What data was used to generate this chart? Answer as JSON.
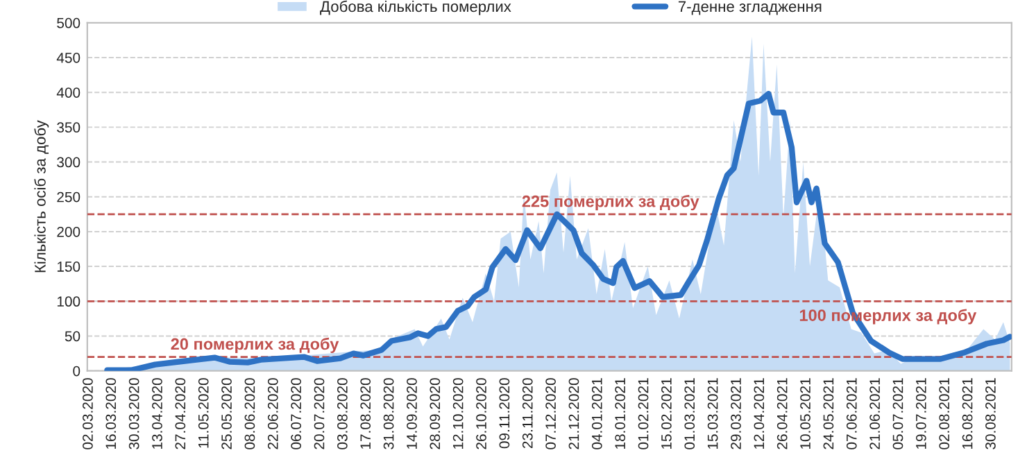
{
  "chart_data": {
    "type": "line",
    "ylabel": "Кількість осіб за добу",
    "xlim": [
      "2020-03-01",
      "2021-09-11"
    ],
    "ylim": [
      0,
      500
    ],
    "yticks": [
      0,
      50,
      100,
      150,
      200,
      250,
      300,
      350,
      400,
      450,
      500
    ],
    "xticks": [
      {
        "value": "2020-03-02",
        "label": "02.03.2020"
      },
      {
        "value": "2020-03-16",
        "label": "16.03.2020"
      },
      {
        "value": "2020-03-30",
        "label": "30.03.2020"
      },
      {
        "value": "2020-04-13",
        "label": "13.04.2020"
      },
      {
        "value": "2020-04-27",
        "label": "27.04.2020"
      },
      {
        "value": "2020-05-11",
        "label": "11.05.2020"
      },
      {
        "value": "2020-05-25",
        "label": "25.05.2020"
      },
      {
        "value": "2020-06-08",
        "label": "08.06.2020"
      },
      {
        "value": "2020-06-22",
        "label": "22.06.2020"
      },
      {
        "value": "2020-07-06",
        "label": "06.07.2020"
      },
      {
        "value": "2020-07-20",
        "label": "20.07.2020"
      },
      {
        "value": "2020-08-03",
        "label": "03.08.2020"
      },
      {
        "value": "2020-08-17",
        "label": "17.08.2020"
      },
      {
        "value": "2020-08-31",
        "label": "31.08.2020"
      },
      {
        "value": "2020-09-14",
        "label": "14.09.2020"
      },
      {
        "value": "2020-09-28",
        "label": "28.09.2020"
      },
      {
        "value": "2020-10-12",
        "label": "12.10.2020"
      },
      {
        "value": "2020-10-26",
        "label": "26.10.2020"
      },
      {
        "value": "2020-11-09",
        "label": "09.11.2020"
      },
      {
        "value": "2020-11-23",
        "label": "23.11.2020"
      },
      {
        "value": "2020-12-07",
        "label": "07.12.2020"
      },
      {
        "value": "2020-12-21",
        "label": "21.12.2020"
      },
      {
        "value": "2021-01-04",
        "label": "04.01.2021"
      },
      {
        "value": "2021-01-18",
        "label": "18.01.2021"
      },
      {
        "value": "2021-02-01",
        "label": "01.02.2021"
      },
      {
        "value": "2021-02-15",
        "label": "15.02.2021"
      },
      {
        "value": "2021-03-01",
        "label": "01.03.2021"
      },
      {
        "value": "2021-03-15",
        "label": "15.03.2021"
      },
      {
        "value": "2021-03-29",
        "label": "29.03.2021"
      },
      {
        "value": "2021-04-12",
        "label": "12.04.2021"
      },
      {
        "value": "2021-04-26",
        "label": "26.04.2021"
      },
      {
        "value": "2021-05-10",
        "label": "10.05.2021"
      },
      {
        "value": "2021-05-24",
        "label": "24.05.2021"
      },
      {
        "value": "2021-06-07",
        "label": "07.06.2021"
      },
      {
        "value": "2021-06-21",
        "label": "21.06.2021"
      },
      {
        "value": "2021-07-05",
        "label": "05.07.2021"
      },
      {
        "value": "2021-07-19",
        "label": "19.07.2021"
      },
      {
        "value": "2021-08-02",
        "label": "02.08.2021"
      },
      {
        "value": "2021-08-16",
        "label": "16.08.2021"
      },
      {
        "value": "2021-08-30",
        "label": "30.08.2021"
      }
    ],
    "grid": "y",
    "legend": "top",
    "series": [
      {
        "name": "Добова кількість померлих",
        "type": "area",
        "color": "#c5dcf5",
        "x": [
          "2020-03-13",
          "2020-04-10",
          "2020-05-10",
          "2020-06-10",
          "2020-07-10",
          "2020-08-10",
          "2020-08-25",
          "2020-09-05",
          "2020-09-15",
          "2020-09-20",
          "2020-10-01",
          "2020-10-06",
          "2020-10-14",
          "2020-10-20",
          "2020-10-28",
          "2020-11-02",
          "2020-11-06",
          "2020-11-12",
          "2020-11-17",
          "2020-11-20",
          "2020-11-24",
          "2020-11-29",
          "2020-12-02",
          "2020-12-06",
          "2020-12-10",
          "2020-12-14",
          "2020-12-18",
          "2020-12-22",
          "2020-12-29",
          "2021-01-03",
          "2021-01-08",
          "2021-01-12",
          "2021-01-20",
          "2021-01-25",
          "2021-02-03",
          "2021-02-08",
          "2021-02-16",
          "2021-02-22",
          "2021-03-02",
          "2021-03-07",
          "2021-03-16",
          "2021-03-21",
          "2021-03-27",
          "2021-03-31",
          "2021-04-07",
          "2021-04-11",
          "2021-04-14",
          "2021-04-18",
          "2021-04-22",
          "2021-04-26",
          "2021-04-30",
          "2021-05-03",
          "2021-05-08",
          "2021-05-12",
          "2021-05-18",
          "2021-05-23",
          "2021-05-30",
          "2021-06-06",
          "2021-06-12",
          "2021-06-20",
          "2021-06-28",
          "2021-07-06",
          "2021-07-15",
          "2021-07-25",
          "2021-08-05",
          "2021-08-15",
          "2021-08-25",
          "2021-09-01",
          "2021-09-06",
          "2021-09-10"
        ],
        "values": [
          1,
          10,
          20,
          18,
          22,
          28,
          30,
          50,
          60,
          35,
          75,
          45,
          105,
          70,
          140,
          100,
          190,
          200,
          120,
          255,
          160,
          215,
          140,
          260,
          285,
          170,
          280,
          160,
          205,
          110,
          175,
          100,
          185,
          90,
          150,
          80,
          130,
          75,
          160,
          110,
          240,
          180,
          360,
          300,
          480,
          280,
          470,
          300,
          440,
          220,
          360,
          140,
          300,
          150,
          260,
          130,
          120,
          60,
          55,
          25,
          30,
          10,
          20,
          15,
          25,
          30,
          60,
          45,
          70,
          40
        ]
      },
      {
        "name": "7-денне згладження",
        "color": "#2e72c4",
        "x": [
          "2020-03-13",
          "2020-03-28",
          "2020-04-11",
          "2020-05-06",
          "2020-05-17",
          "2020-05-26",
          "2020-06-06",
          "2020-06-14",
          "2020-07-10",
          "2020-07-18",
          "2020-08-01",
          "2020-08-09",
          "2020-08-15",
          "2020-08-26",
          "2020-09-01",
          "2020-09-12",
          "2020-09-17",
          "2020-09-23",
          "2020-09-28",
          "2020-10-04",
          "2020-10-11",
          "2020-10-17",
          "2020-10-21",
          "2020-10-28",
          "2020-11-01",
          "2020-11-09",
          "2020-11-15",
          "2020-11-22",
          "2020-11-30",
          "2020-12-10",
          "2020-12-20",
          "2020-12-25",
          "2021-01-01",
          "2021-01-07",
          "2021-01-13",
          "2021-01-15",
          "2021-01-19",
          "2021-01-26",
          "2021-02-04",
          "2021-02-12",
          "2021-02-23",
          "2021-02-28",
          "2021-03-06",
          "2021-03-11",
          "2021-03-18",
          "2021-03-23",
          "2021-03-27",
          "2021-04-05",
          "2021-04-12",
          "2021-04-17",
          "2021-04-20",
          "2021-04-26",
          "2021-05-01",
          "2021-05-04",
          "2021-05-10",
          "2021-05-13",
          "2021-05-16",
          "2021-05-21",
          "2021-05-29",
          "2021-06-07",
          "2021-06-18",
          "2021-06-29",
          "2021-07-07",
          "2021-07-30",
          "2021-08-13",
          "2021-08-27",
          "2021-09-06",
          "2021-09-10"
        ],
        "values": [
          1,
          1,
          9,
          16,
          19,
          13,
          12,
          16,
          20,
          14,
          18,
          25,
          22,
          30,
          43,
          48,
          54,
          50,
          60,
          63,
          86,
          93,
          106,
          117,
          149,
          175,
          159,
          202,
          176,
          225,
          202,
          169,
          152,
          132,
          126,
          149,
          158,
          119,
          129,
          106,
          109,
          129,
          152,
          189,
          248,
          281,
          291,
          384,
          388,
          398,
          371,
          371,
          321,
          242,
          273,
          242,
          262,
          183,
          156,
          83,
          43,
          26,
          17,
          17,
          26,
          39,
          44,
          49
        ]
      }
    ],
    "ref_lines": [
      {
        "axis": "y",
        "value": 20,
        "label": "20 померлих за добу",
        "color": "#c0504d",
        "line_style": "dashed"
      },
      {
        "axis": "y",
        "value": 225,
        "label": "225 померлих за добу",
        "color": "#c0504d",
        "line_style": "dashed"
      },
      {
        "axis": "y",
        "value": 100,
        "label": "100 померлих за добу",
        "color": "#c0504d",
        "line_style": "dashed"
      }
    ]
  }
}
